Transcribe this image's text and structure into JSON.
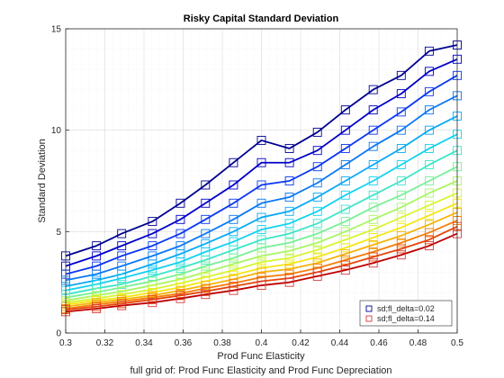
{
  "chart_data": {
    "type": "line",
    "title": "Risky Capital Standard Deviation",
    "xlabel": "Prod Func Elasticity",
    "ylabel": "Standard Deviation",
    "caption": "full grid of: Prod Func Elasticity and Prod Func Depreciation",
    "xlim": [
      0.3,
      0.5
    ],
    "ylim": [
      0,
      15
    ],
    "xticks": [
      "0.3",
      "0.32",
      "0.34",
      "0.36",
      "0.38",
      "0.4",
      "0.42",
      "0.44",
      "0.46",
      "0.48",
      "0.5"
    ],
    "yticks": [
      "0",
      "5",
      "10",
      "15"
    ],
    "grid": true,
    "marker": "square",
    "legend_position": "bottom-right",
    "x": [
      0.3,
      0.3157,
      0.3286,
      0.3443,
      0.3586,
      0.3714,
      0.3857,
      0.4,
      0.4143,
      0.4286,
      0.4429,
      0.4571,
      0.4714,
      0.4857,
      0.5
    ],
    "series": [
      {
        "name": "sd;fl_delta=0.02",
        "color": "#00008f",
        "marker_color": "#00008f",
        "values": [
          3.8,
          4.3,
          4.9,
          5.5,
          6.4,
          7.3,
          8.4,
          9.5,
          9.1,
          9.9,
          11.0,
          12.0,
          12.7,
          13.9,
          14.2
        ]
      },
      {
        "color": "#0000c8",
        "values": [
          3.3,
          3.8,
          4.3,
          4.9,
          5.6,
          6.4,
          7.3,
          8.4,
          8.4,
          9.0,
          10.0,
          11.0,
          11.8,
          12.9,
          13.5
        ]
      },
      {
        "color": "#0a37f0",
        "values": [
          2.9,
          3.3,
          3.8,
          4.3,
          4.9,
          5.6,
          6.4,
          7.3,
          7.5,
          8.2,
          9.1,
          10.0,
          10.9,
          11.9,
          12.7
        ]
      },
      {
        "color": "#0a78f5",
        "values": [
          2.6,
          2.9,
          3.3,
          3.8,
          4.3,
          4.9,
          5.6,
          6.4,
          6.7,
          7.4,
          8.3,
          9.2,
          10.0,
          11.0,
          11.7
        ]
      },
      {
        "color": "#0aaaf5",
        "values": [
          2.3,
          2.6,
          2.9,
          3.4,
          3.9,
          4.4,
          5.0,
          5.7,
          6.0,
          6.7,
          7.5,
          8.3,
          9.1,
          10.0,
          10.7
        ]
      },
      {
        "color": "#14d2f0",
        "values": [
          2.1,
          2.4,
          2.7,
          3.1,
          3.5,
          4.0,
          4.5,
          5.1,
          5.4,
          6.0,
          6.8,
          7.5,
          8.3,
          9.1,
          9.8
        ]
      },
      {
        "color": "#3ce6c8",
        "values": [
          1.9,
          2.2,
          2.4,
          2.8,
          3.2,
          3.6,
          4.1,
          4.6,
          4.9,
          5.4,
          6.1,
          6.8,
          7.5,
          8.3,
          9.0
        ]
      },
      {
        "color": "#78f096",
        "values": [
          1.75,
          2.0,
          2.25,
          2.55,
          2.9,
          3.3,
          3.7,
          4.2,
          4.45,
          4.9,
          5.5,
          6.2,
          6.8,
          7.5,
          8.2
        ]
      },
      {
        "color": "#aaf564",
        "values": [
          1.6,
          1.85,
          2.05,
          2.35,
          2.65,
          3.0,
          3.4,
          3.8,
          4.05,
          4.45,
          5.0,
          5.6,
          6.2,
          6.9,
          7.5
        ]
      },
      {
        "color": "#d7f532",
        "values": [
          1.5,
          1.7,
          1.9,
          2.15,
          2.45,
          2.75,
          3.1,
          3.5,
          3.7,
          4.1,
          4.6,
          5.1,
          5.7,
          6.3,
          6.9
        ]
      },
      {
        "color": "#f5e614",
        "values": [
          1.4,
          1.6,
          1.75,
          2.0,
          2.25,
          2.55,
          2.85,
          3.2,
          3.4,
          3.75,
          4.2,
          4.7,
          5.2,
          5.8,
          6.4
        ]
      },
      {
        "color": "#f5b40a",
        "values": [
          1.3,
          1.5,
          1.65,
          1.85,
          2.1,
          2.35,
          2.65,
          3.0,
          3.15,
          3.45,
          3.9,
          4.35,
          4.8,
          5.35,
          5.95
        ]
      },
      {
        "color": "#f57d0a",
        "values": [
          1.2,
          1.4,
          1.55,
          1.75,
          1.95,
          2.2,
          2.45,
          2.75,
          2.9,
          3.2,
          3.6,
          4.0,
          4.45,
          4.95,
          5.55
        ]
      },
      {
        "color": "#e6460a",
        "values": [
          1.15,
          1.3,
          1.45,
          1.65,
          1.85,
          2.05,
          2.3,
          2.55,
          2.7,
          3.0,
          3.35,
          3.75,
          4.15,
          4.6,
          5.25
        ]
      },
      {
        "name": "sd;fl_delta=0.14",
        "color": "#be0000",
        "marker_color": "#d23c3c",
        "values": [
          1.05,
          1.2,
          1.35,
          1.5,
          1.7,
          1.9,
          2.1,
          2.35,
          2.5,
          2.8,
          3.1,
          3.45,
          3.85,
          4.3,
          4.9
        ]
      }
    ]
  }
}
